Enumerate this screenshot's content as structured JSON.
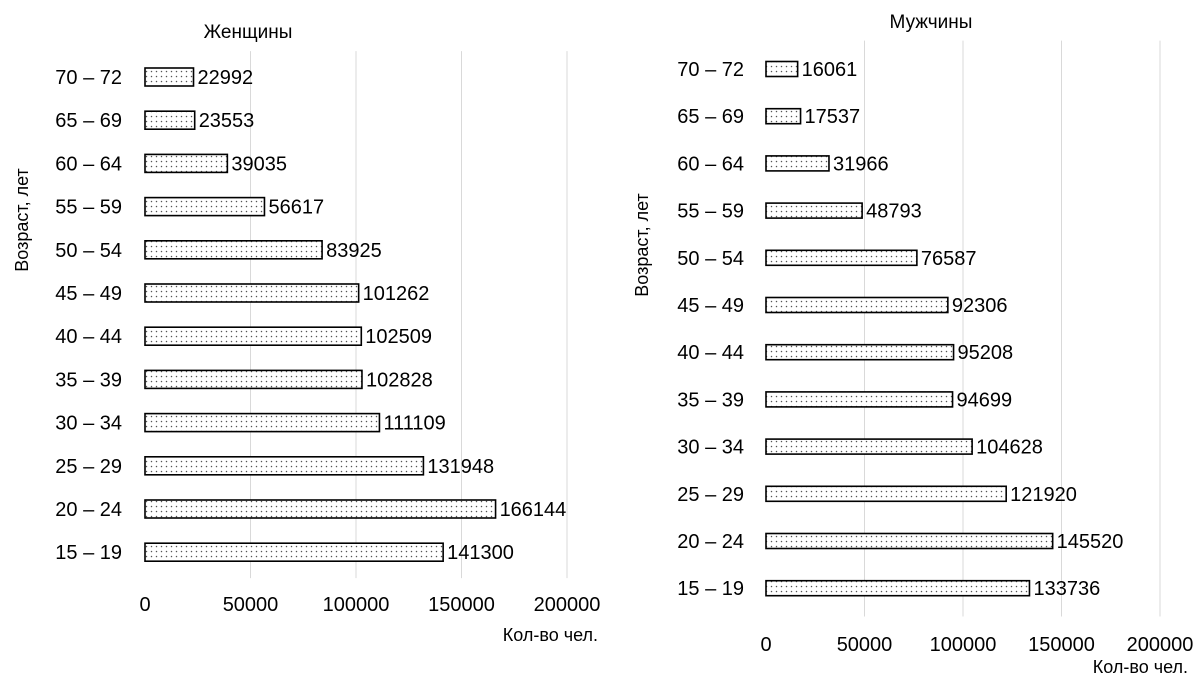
{
  "chart_data": [
    {
      "type": "bar",
      "orientation": "horizontal",
      "title": "Женщины",
      "xlabel": "Кол-во чел.",
      "ylabel": "Возраст, лет",
      "xlim": [
        0,
        200000
      ],
      "xticks": [
        "0",
        "50000",
        "100000",
        "150000",
        "200000"
      ],
      "grid": true,
      "categories": [
        "70 – 72",
        "65 – 69",
        "60 – 64",
        "55 – 59",
        "50 – 54",
        "45 – 49",
        "40 – 44",
        "35 – 39",
        "30 – 34",
        "25 – 29",
        "20 – 24",
        "15 – 19"
      ],
      "values": [
        22992,
        23553,
        39035,
        56617,
        83925,
        101262,
        102509,
        102828,
        111109,
        131948,
        166144,
        141300
      ]
    },
    {
      "type": "bar",
      "orientation": "horizontal",
      "title": "Мужчины",
      "xlabel": "Кол-во чел.",
      "ylabel": "Возраст, лет",
      "xlim": [
        0,
        200000
      ],
      "xticks": [
        "0",
        "50000",
        "100000",
        "150000",
        "200000"
      ],
      "grid": true,
      "categories": [
        "70 – 72",
        "65 – 69",
        "60 – 64",
        "55 – 59",
        "50 – 54",
        "45 – 49",
        "40 – 44",
        "35 – 39",
        "30 – 34",
        "25 – 29",
        "20 – 24",
        "15 – 19"
      ],
      "values": [
        16061,
        17537,
        31966,
        48793,
        76587,
        92306,
        95208,
        94699,
        104628,
        121920,
        145520,
        133736
      ]
    }
  ]
}
